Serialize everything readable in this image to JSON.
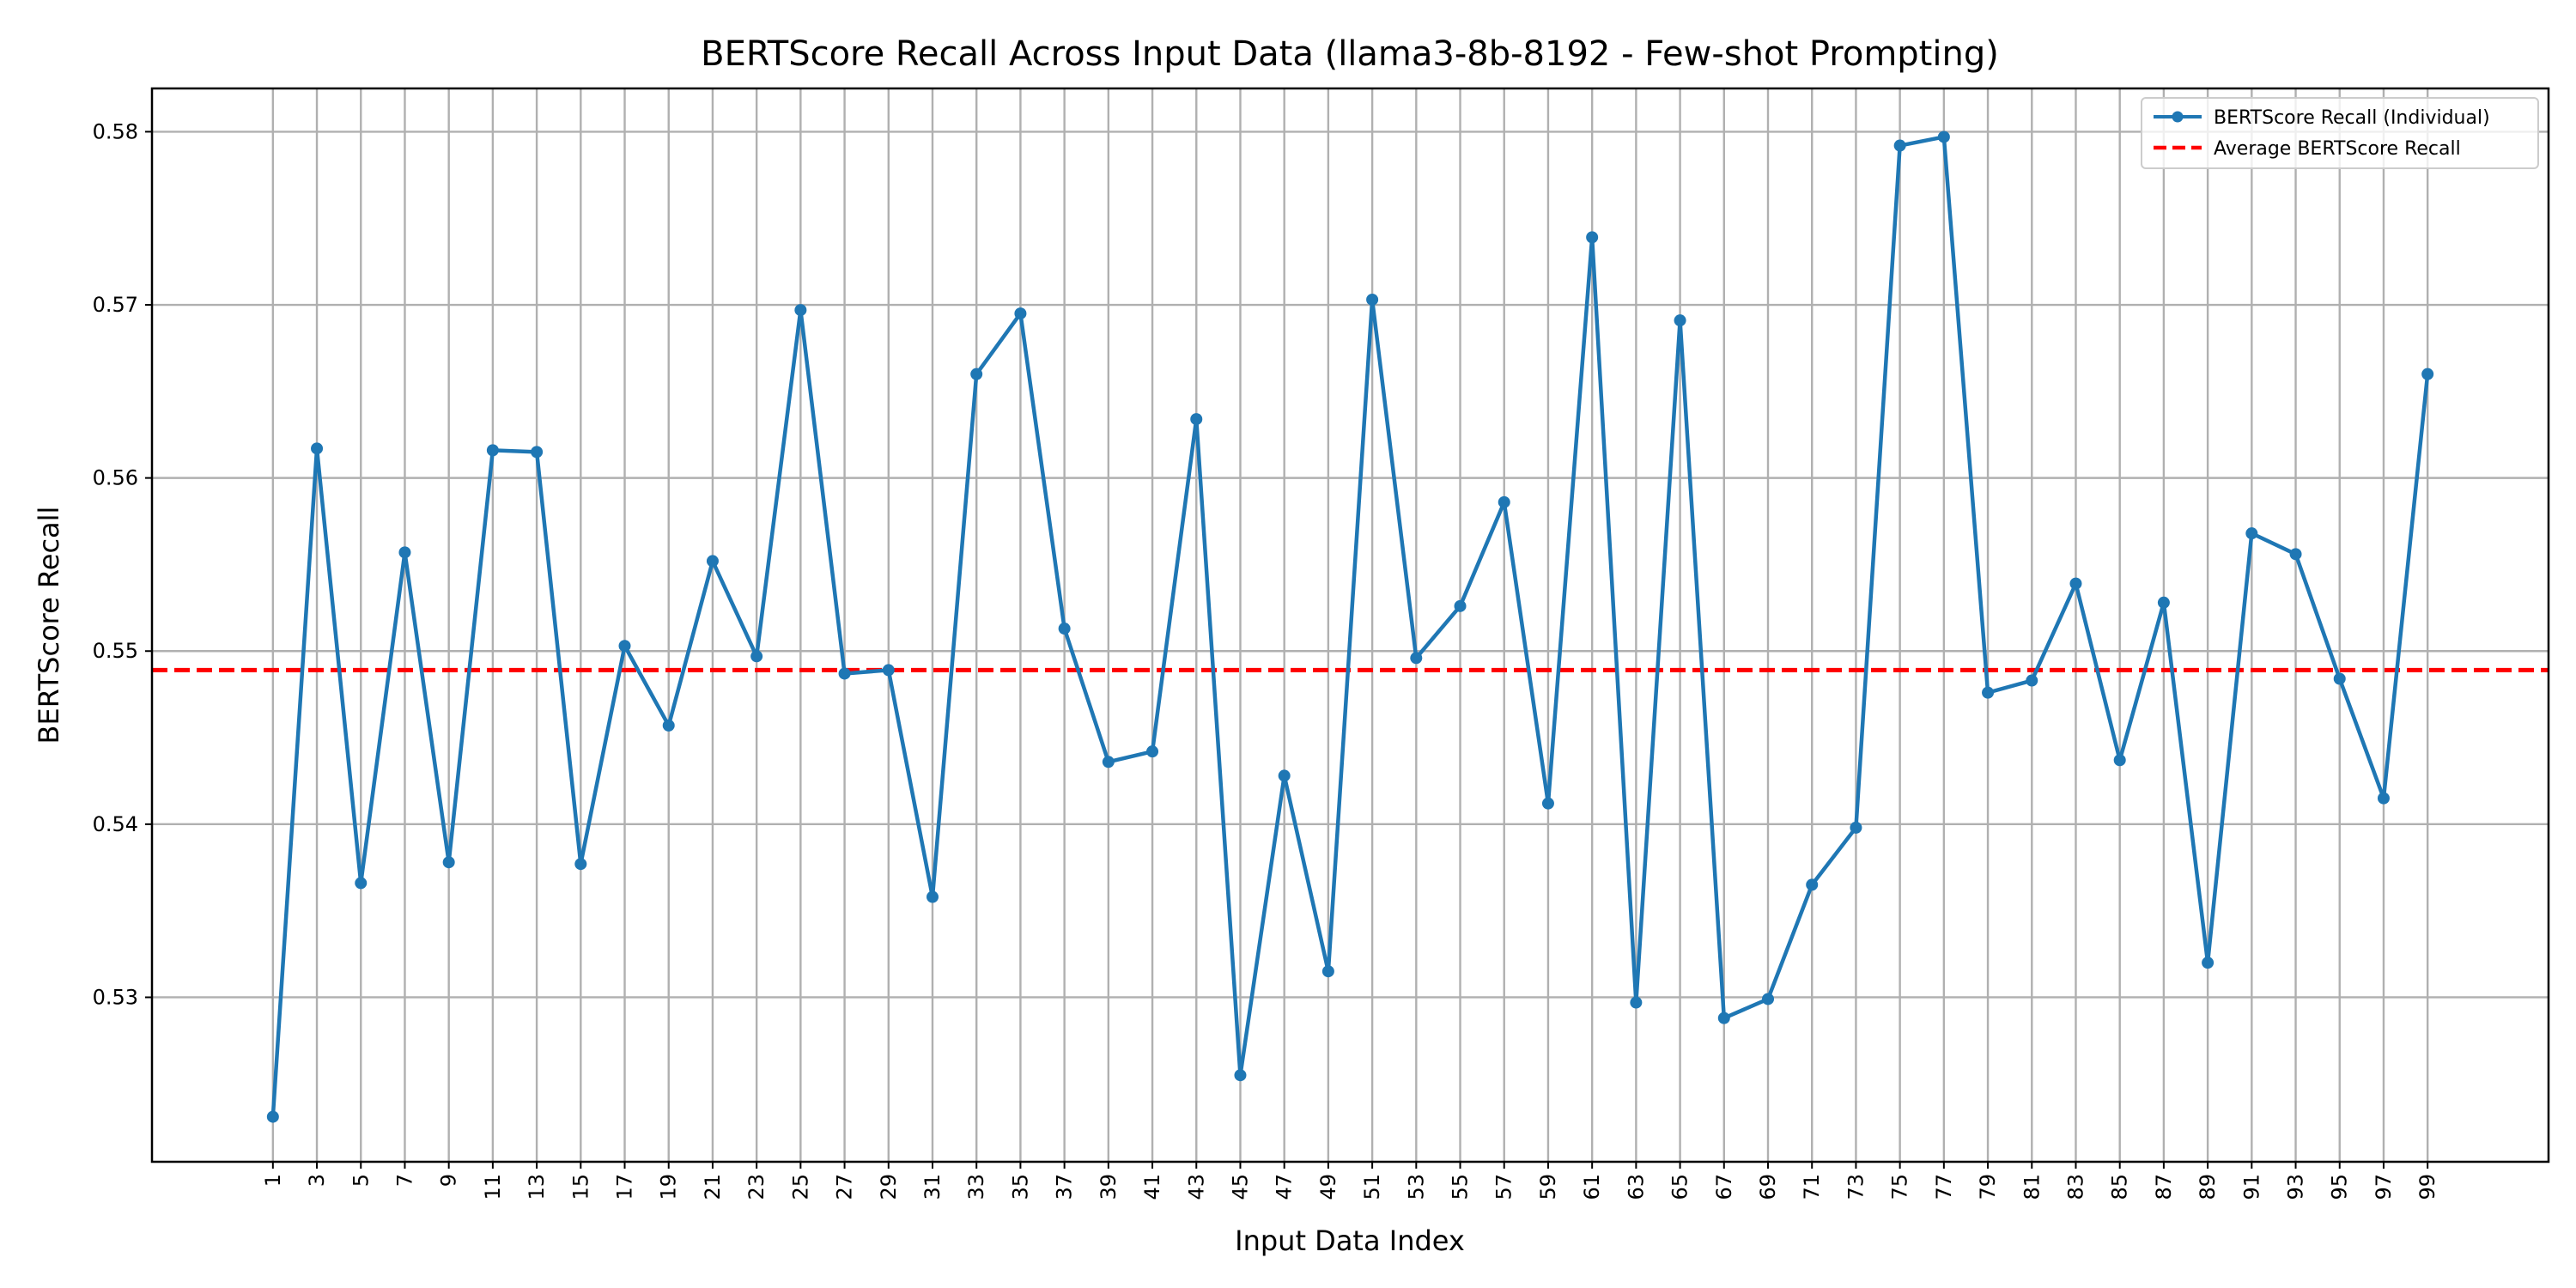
{
  "chart_data": {
    "type": "line",
    "title": "BERTScore Recall Across Input Data (llama3-8b-8192 - Few-shot Prompting)",
    "xlabel": "Input Data Index",
    "ylabel": "BERTScore Recall",
    "xlim": [
      -4.5,
      104.5
    ],
    "ylim": [
      0.5205,
      0.5825
    ],
    "x_ticks": [
      1,
      3,
      5,
      7,
      9,
      11,
      13,
      15,
      17,
      19,
      21,
      23,
      25,
      27,
      29,
      31,
      33,
      35,
      37,
      39,
      41,
      43,
      45,
      47,
      49,
      51,
      53,
      55,
      57,
      59,
      61,
      63,
      65,
      67,
      69,
      71,
      73,
      75,
      77,
      79,
      81,
      83,
      85,
      87,
      89,
      91,
      93,
      95,
      97,
      99
    ],
    "y_ticks": [
      0.53,
      0.54,
      0.55,
      0.56,
      0.57,
      0.58
    ],
    "y_tick_labels": [
      "0.53",
      "0.54",
      "0.55",
      "0.56",
      "0.57",
      "0.58"
    ],
    "grid": true,
    "legend_position": "top-right",
    "series": [
      {
        "name": "BERTScore Recall (Individual)",
        "style": "line-with-markers",
        "color": "#1f77b4",
        "x": [
          1,
          3,
          5,
          7,
          9,
          11,
          13,
          15,
          17,
          19,
          21,
          23,
          25,
          27,
          29,
          31,
          33,
          35,
          37,
          39,
          41,
          43,
          45,
          47,
          49,
          51,
          53,
          55,
          57,
          59,
          61,
          63,
          65,
          67,
          69,
          71,
          73,
          75,
          77,
          79,
          81,
          83,
          85,
          87,
          89,
          91,
          93,
          95,
          97,
          99
        ],
        "values": [
          0.5231,
          0.5617,
          0.5366,
          0.5557,
          0.5378,
          0.5616,
          0.5615,
          0.5377,
          0.5503,
          0.5457,
          0.5552,
          0.5497,
          0.5697,
          0.5487,
          0.5489,
          0.5358,
          0.566,
          0.5695,
          0.5513,
          0.5436,
          0.5442,
          0.5634,
          0.5255,
          0.5428,
          0.5315,
          0.5703,
          0.5496,
          0.5526,
          0.5586,
          0.5412,
          0.5739,
          0.5297,
          0.5691,
          0.5288,
          0.5299,
          0.5365,
          0.5398,
          0.5792,
          0.5797,
          0.5476,
          0.5483,
          0.5539,
          0.5437,
          0.5528,
          0.532,
          0.5568,
          0.5556,
          0.5484,
          0.5415,
          0.566
        ]
      },
      {
        "name": "Average BERTScore Recall",
        "style": "dashed-horizontal",
        "color": "#ff0000",
        "value": 0.5489
      }
    ]
  }
}
